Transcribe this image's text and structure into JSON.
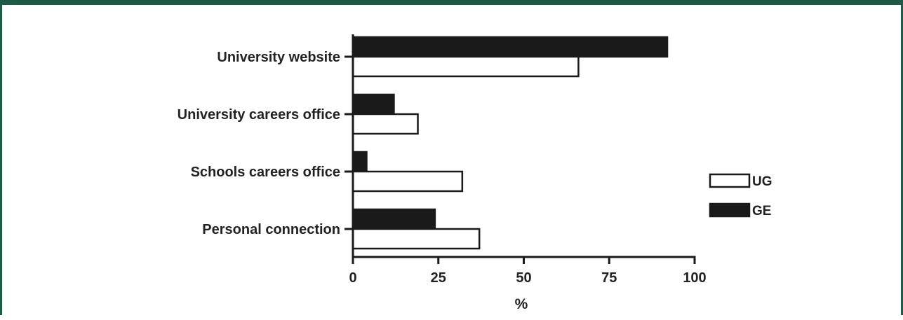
{
  "chart_data": {
    "type": "bar",
    "orientation": "horizontal",
    "categories": [
      "University website",
      "University careers office",
      "Schools careers office",
      "Personal connection"
    ],
    "series": [
      {
        "name": "GE",
        "values": [
          92,
          12,
          4,
          24
        ],
        "color": "#1a1a1a"
      },
      {
        "name": "UG",
        "values": [
          66,
          19,
          32,
          37
        ],
        "color": "#ffffff"
      }
    ],
    "xlabel": "%",
    "ylabel": "",
    "xlim": [
      0,
      100
    ],
    "xticks": [
      "0",
      "25",
      "50",
      "75",
      "100"
    ],
    "grid": false,
    "legend": {
      "placement": "right",
      "order": [
        "UG",
        "GE"
      ]
    }
  }
}
